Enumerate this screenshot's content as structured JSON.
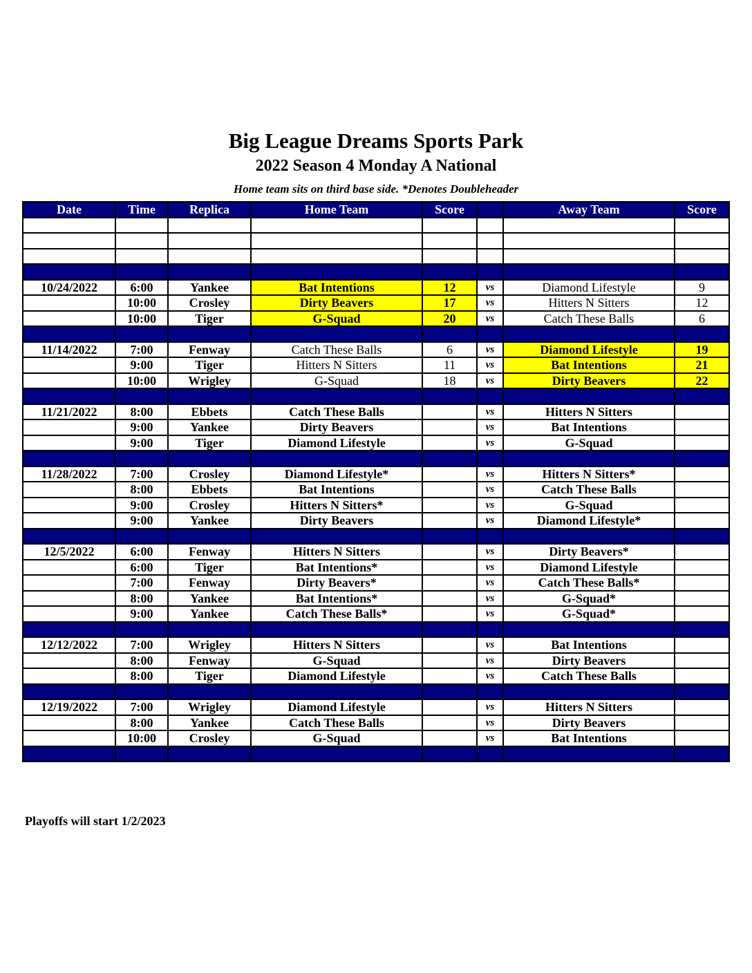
{
  "title": "Big League Dreams Sports Park",
  "subtitle": "2022 Season 4 Monday A National",
  "note": "Home team sits on third base side.  *Denotes Doubleheader",
  "columns": [
    "Date",
    "Time",
    "Replica",
    "Home Team",
    "Score",
    "",
    "Away Team",
    "Score"
  ],
  "vs_label": "vs",
  "highlight_color": "#ffff00",
  "header_color": "#000080",
  "weeks": [
    {
      "date": "10/24/2022",
      "games": [
        {
          "time": "6:00",
          "replica": "Yankee",
          "home": "Bat Intentions",
          "home_score": "12",
          "away": "Diamond Lifestyle",
          "away_score": "9",
          "winner": "home"
        },
        {
          "time": "10:00",
          "replica": "Crosley",
          "home": "Dirty Beavers",
          "home_score": "17",
          "away": "Hitters N Sitters",
          "away_score": "12",
          "winner": "home"
        },
        {
          "time": "10:00",
          "replica": "Tiger",
          "home": "G-Squad",
          "home_score": "20",
          "away": "Catch These Balls",
          "away_score": "6",
          "winner": "home"
        }
      ]
    },
    {
      "date": "11/14/2022",
      "games": [
        {
          "time": "7:00",
          "replica": "Fenway",
          "home": "Catch These Balls",
          "home_score": "6",
          "away": "Diamond Lifestyle",
          "away_score": "19",
          "winner": "away"
        },
        {
          "time": "9:00",
          "replica": "Tiger",
          "home": "Hitters N Sitters",
          "home_score": "11",
          "away": "Bat Intentions",
          "away_score": "21",
          "winner": "away"
        },
        {
          "time": "10:00",
          "replica": "Wrigley",
          "home": "G-Squad",
          "home_score": "18",
          "away": "Dirty Beavers",
          "away_score": "22",
          "winner": "away"
        }
      ]
    },
    {
      "date": "11/21/2022",
      "games": [
        {
          "time": "8:00",
          "replica": "Ebbets",
          "home": "Catch These Balls",
          "home_score": "",
          "away": "Hitters N Sitters",
          "away_score": ""
        },
        {
          "time": "9:00",
          "replica": "Yankee",
          "home": "Dirty Beavers",
          "home_score": "",
          "away": "Bat Intentions",
          "away_score": ""
        },
        {
          "time": "9:00",
          "replica": "Tiger",
          "home": "Diamond Lifestyle",
          "home_score": "",
          "away": "G-Squad",
          "away_score": ""
        }
      ]
    },
    {
      "date": "11/28/2022",
      "games": [
        {
          "time": "7:00",
          "replica": "Crosley",
          "home": "Diamond Lifestyle*",
          "home_score": "",
          "away": "Hitters N Sitters*",
          "away_score": ""
        },
        {
          "time": "8:00",
          "replica": "Ebbets",
          "home": "Bat Intentions",
          "home_score": "",
          "away": "Catch These Balls",
          "away_score": ""
        },
        {
          "time": "9:00",
          "replica": "Crosley",
          "home": "Hitters N Sitters*",
          "home_score": "",
          "away": "G-Squad",
          "away_score": ""
        },
        {
          "time": "9:00",
          "replica": "Yankee",
          "home": "Dirty Beavers",
          "home_score": "",
          "away": "Diamond Lifestyle*",
          "away_score": ""
        }
      ]
    },
    {
      "date": "12/5/2022",
      "games": [
        {
          "time": "6:00",
          "replica": "Fenway",
          "home": "Hitters N Sitters",
          "home_score": "",
          "away": "Dirty Beavers*",
          "away_score": ""
        },
        {
          "time": "6:00",
          "replica": "Tiger",
          "home": "Bat Intentions*",
          "home_score": "",
          "away": "Diamond Lifestyle",
          "away_score": ""
        },
        {
          "time": "7:00",
          "replica": "Fenway",
          "home": "Dirty Beavers*",
          "home_score": "",
          "away": "Catch These Balls*",
          "away_score": ""
        },
        {
          "time": "8:00",
          "replica": "Yankee",
          "home": "Bat Intentions*",
          "home_score": "",
          "away": "G-Squad*",
          "away_score": ""
        },
        {
          "time": "9:00",
          "replica": "Yankee",
          "home": "Catch These Balls*",
          "home_score": "",
          "away": "G-Squad*",
          "away_score": ""
        }
      ]
    },
    {
      "date": "12/12/2022",
      "games": [
        {
          "time": "7:00",
          "replica": "Wrigley",
          "home": "Hitters N Sitters",
          "home_score": "",
          "away": "Bat Intentions",
          "away_score": ""
        },
        {
          "time": "8:00",
          "replica": "Fenway",
          "home": "G-Squad",
          "home_score": "",
          "away": "Dirty Beavers",
          "away_score": ""
        },
        {
          "time": "8:00",
          "replica": "Tiger",
          "home": "Diamond Lifestyle",
          "home_score": "",
          "away": "Catch These Balls",
          "away_score": ""
        }
      ]
    },
    {
      "date": "12/19/2022",
      "games": [
        {
          "time": "7:00",
          "replica": "Wrigley",
          "home": "Diamond Lifestyle",
          "home_score": "",
          "away": "Hitters N Sitters",
          "away_score": ""
        },
        {
          "time": "8:00",
          "replica": "Yankee",
          "home": "Catch These Balls",
          "home_score": "",
          "away": "Dirty Beavers",
          "away_score": ""
        },
        {
          "time": "10:00",
          "replica": "Crosley",
          "home": "G-Squad",
          "home_score": "",
          "away": "Bat Intentions",
          "away_score": ""
        }
      ]
    }
  ],
  "footer": "Playoffs will start 1/2/2023"
}
